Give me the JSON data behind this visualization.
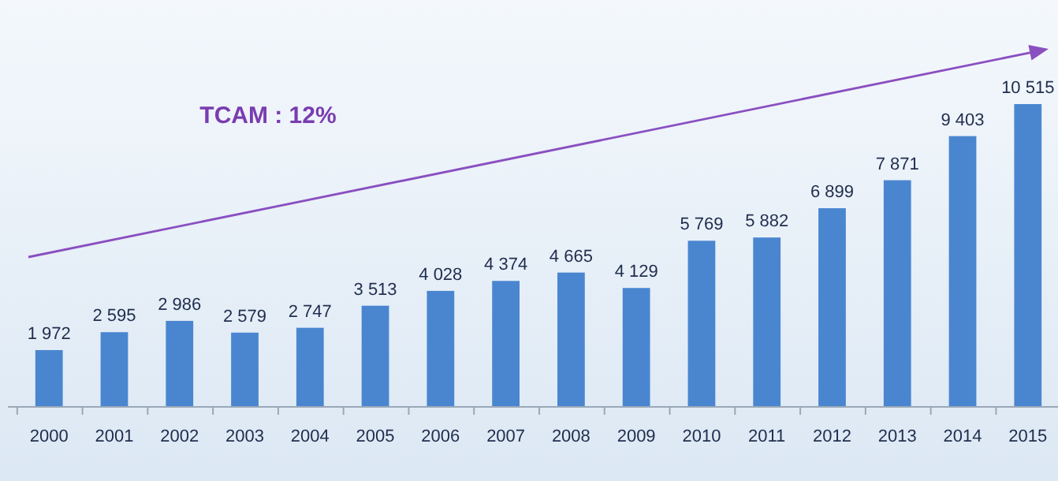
{
  "chart_data": {
    "type": "bar",
    "categories": [
      "2000",
      "2001",
      "2002",
      "2003",
      "2004",
      "2005",
      "2006",
      "2007",
      "2008",
      "2009",
      "2010",
      "2011",
      "2012",
      "2013",
      "2014",
      "2015"
    ],
    "values": [
      1972,
      2595,
      2986,
      2579,
      2747,
      3513,
      4028,
      4374,
      4665,
      4129,
      5769,
      5882,
      6899,
      7871,
      9403,
      10515
    ],
    "value_labels": [
      "1 972",
      "2 595",
      "2 986",
      "2 579",
      "2 747",
      "3 513",
      "4 028",
      "4 374",
      "4 665",
      "4 129",
      "5 769",
      "5 882",
      "6 899",
      "7 871",
      "9 403",
      "10 515"
    ],
    "color": "#4a86d0",
    "annotations": [
      "TCAM : 12%"
    ]
  }
}
